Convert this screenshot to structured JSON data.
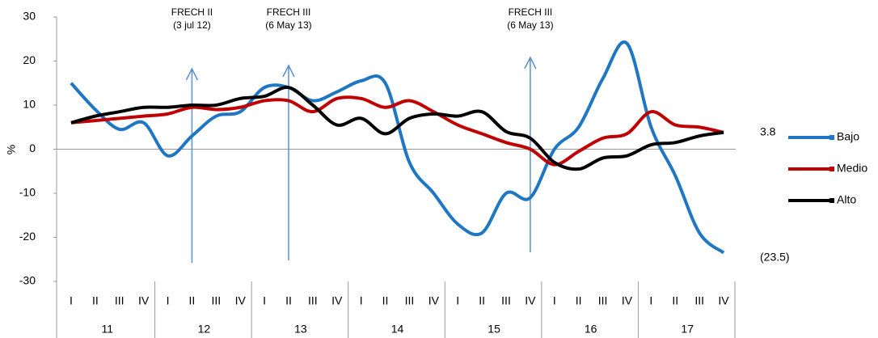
{
  "chart_data": {
    "type": "line",
    "y_label": "%",
    "categories": [
      "I",
      "II",
      "III",
      "IV",
      "I",
      "II",
      "III",
      "IV",
      "I",
      "II",
      "III",
      "IV",
      "I",
      "II",
      "III",
      "IV",
      "I",
      "II",
      "III",
      "IV",
      "I",
      "II",
      "III",
      "IV",
      "I",
      "II",
      "III",
      "IV"
    ],
    "groups": [
      "11",
      "12",
      "13",
      "14",
      "15",
      "16",
      "17"
    ],
    "ylim": [
      -30,
      30
    ],
    "yticks": [
      -30,
      -20,
      -10,
      0,
      10,
      20,
      30
    ],
    "annotations": [
      [
        "FRECH II",
        "(3 jul 12)"
      ],
      [
        "FRECH III",
        "(6 May 13)"
      ],
      [
        "FRECH III",
        "(6 May 13)"
      ]
    ],
    "annotation_color": "#5b8fc9",
    "series": [
      {
        "name": "Bajo",
        "color": "#1f77c4",
        "end_label": "(23.5)",
        "values": [
          15,
          9,
          4.5,
          6,
          -1.5,
          3,
          7.5,
          8.5,
          14,
          14,
          11,
          13,
          15.5,
          15,
          -3,
          -10,
          -17,
          -19,
          -10,
          -11,
          0,
          5,
          16,
          24,
          5,
          -6,
          -19,
          -23.5
        ]
      },
      {
        "name": "Medio",
        "color": "#c00000",
        "values": [
          6,
          6.5,
          7,
          7.5,
          8,
          9.5,
          9,
          9.5,
          11,
          11,
          8.5,
          11.5,
          11.5,
          9.5,
          11,
          8.5,
          5.5,
          3.5,
          1.5,
          0,
          -3.5,
          -0.5,
          2.5,
          3.5,
          8.5,
          5.5,
          5,
          3.8
        ]
      },
      {
        "name": "Alto",
        "color": "#000000",
        "end_label": "3.8",
        "values": [
          6,
          7.5,
          8.5,
          9.5,
          9.5,
          10,
          10,
          11.5,
          12,
          14,
          10,
          5.5,
          7,
          3.5,
          7,
          8,
          7.5,
          8.5,
          4,
          2.5,
          -3,
          -4.5,
          -2,
          -1.5,
          1,
          1.5,
          3,
          3.8
        ]
      }
    ]
  }
}
